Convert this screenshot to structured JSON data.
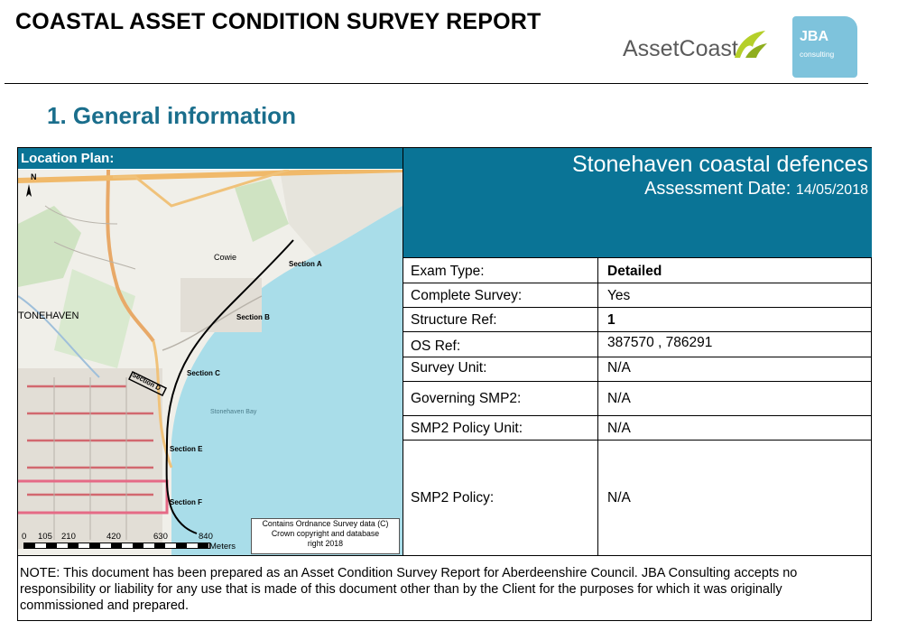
{
  "header": {
    "title": "COASTAL ASSET CONDITION SURVEY REPORT",
    "logo_assetcoast": "AssetCoast",
    "logo_jba_main": "JBA",
    "logo_jba_sub": "consulting"
  },
  "section": {
    "heading": "1. General information"
  },
  "location_plan": {
    "header": "Location Plan:",
    "map_labels": {
      "place_stonehaven": "TONEHAVEN",
      "place_cowie": "Cowie",
      "bay": "Stonehaven Bay",
      "section_a": "Section A",
      "section_b": "Section B",
      "section_c": "Section C",
      "section_d": "Section D",
      "section_e": "Section E",
      "section_f": "Section F",
      "north": "N"
    },
    "scale": {
      "ticks": [
        "0",
        "105",
        "210",
        "420",
        "630",
        "840"
      ],
      "unit": "Meters"
    },
    "os_credit": {
      "line1": "Contains Ordnance Survey data (C)",
      "line2": "Crown copyright and database",
      "line3": "right 2018"
    }
  },
  "title_panel": {
    "name": "Stonehaven coastal defences",
    "assessment_label": "Assessment Date:",
    "assessment_date": "14/05/2018"
  },
  "fields": [
    {
      "label": "Exam Type:",
      "value": "Detailed",
      "bold": true
    },
    {
      "label": "Complete Survey:",
      "value": "Yes",
      "bold": false
    },
    {
      "label": "Structure Ref:",
      "value": "1",
      "bold": true
    },
    {
      "label": "OS Ref:",
      "value": "387570 , 786291",
      "bold": false
    },
    {
      "label": "Survey Unit:",
      "value": "N/A",
      "bold": false
    },
    {
      "label": "Governing SMP2:",
      "value": "N/A",
      "bold": false
    },
    {
      "label": "SMP2 Policy Unit:",
      "value": "N/A",
      "bold": false
    },
    {
      "label": "SMP2 Policy:",
      "value": "N/A",
      "bold": false
    }
  ],
  "note": "NOTE: This document has been prepared as an Asset Condition Survey Report for Aberdeenshire Council.  JBA Consulting accepts no responsibility or liability for any use that is made of this document other than by the Client for the purposes for which it was originally commissioned and prepared."
}
